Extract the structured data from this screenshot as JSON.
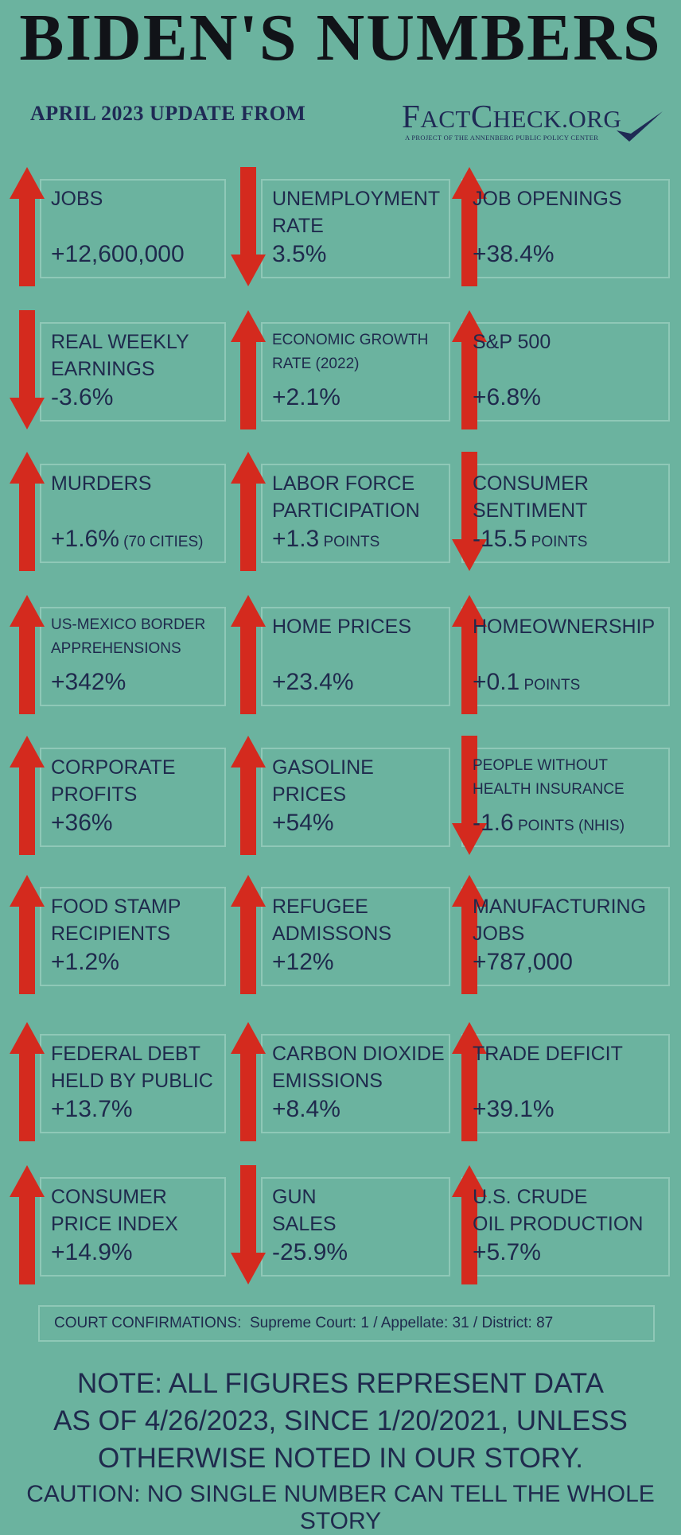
{
  "header": {
    "title": "BIDEN'S NUMBERS",
    "subtitle": "APRIL 2023 UPDATE  FROM",
    "logo_text_a": "F",
    "logo_text_b": "ACT",
    "logo_text_c": "C",
    "logo_text_d": "HECK",
    "logo_text_e": ".ORG",
    "logo_tagline": "A Project of the Annenberg Public Policy Center"
  },
  "colors": {
    "background": "#6bb39f",
    "arrow": "#d42a1e",
    "text": "#1f2a4d",
    "border": "#8fc8b7"
  },
  "stats": [
    {
      "label": [
        "JOBS"
      ],
      "value": "+12,600,000",
      "unit": "",
      "direction": "up"
    },
    {
      "label": [
        "UNEMPLOYMENT",
        "RATE"
      ],
      "value": "3.5%",
      "unit": "",
      "direction": "down"
    },
    {
      "label": [
        "JOB OPENINGS"
      ],
      "value": "+38.4%",
      "unit": "",
      "direction": "up"
    },
    {
      "label": [
        "REAL WEEKLY",
        "EARNINGS"
      ],
      "value": "-3.6%",
      "unit": "",
      "direction": "down"
    },
    {
      "label": [
        "ECONOMIC GROWTH",
        "RATE (2022)"
      ],
      "value": "+2.1%",
      "unit": "",
      "direction": "up"
    },
    {
      "label": [
        "S&P 500"
      ],
      "value": "+6.8%",
      "unit": "",
      "direction": "up"
    },
    {
      "label": [
        "MURDERS"
      ],
      "value": "+1.6%",
      "unit": "(70 CITIES)",
      "direction": "up"
    },
    {
      "label": [
        "LABOR FORCE",
        "PARTICIPATION"
      ],
      "value": "+1.3",
      "unit": "POINTS",
      "direction": "up"
    },
    {
      "label": [
        "CONSUMER",
        "SENTIMENT"
      ],
      "value": "-15.5",
      "unit": "POINTS",
      "direction": "down"
    },
    {
      "label": [
        "US-MEXICO BORDER",
        "APPREHENSIONS"
      ],
      "value": "+342%",
      "unit": "",
      "direction": "up"
    },
    {
      "label": [
        "HOME PRICES"
      ],
      "value": "+23.4%",
      "unit": "",
      "direction": "up"
    },
    {
      "label": [
        "HOMEOWNERSHIP"
      ],
      "value": "+0.1",
      "unit": "POINTS",
      "direction": "up"
    },
    {
      "label": [
        "CORPORATE",
        "PROFITS"
      ],
      "value": "+36%",
      "unit": "",
      "direction": "up"
    },
    {
      "label": [
        "GASOLINE",
        "PRICES"
      ],
      "value": "+54%",
      "unit": "",
      "direction": "up"
    },
    {
      "label": [
        "PEOPLE WITHOUT",
        "HEALTH INSURANCE"
      ],
      "value": "-1.6",
      "unit": "POINTS (NHIS)",
      "direction": "down"
    },
    {
      "label": [
        "FOOD STAMP",
        "RECIPIENTS"
      ],
      "value": "+1.2%",
      "unit": "",
      "direction": "up"
    },
    {
      "label": [
        "REFUGEE",
        "ADMISSONS"
      ],
      "value": "+12%",
      "unit": "",
      "direction": "up"
    },
    {
      "label": [
        "MANUFACTURING",
        "JOBS"
      ],
      "value": "+787,000",
      "unit": "",
      "direction": "up"
    },
    {
      "label": [
        "FEDERAL DEBT",
        "HELD BY PUBLIC"
      ],
      "value": "+13.7%",
      "unit": "",
      "direction": "up"
    },
    {
      "label": [
        "CARBON DIOXIDE",
        "EMISSIONS"
      ],
      "value": "+8.4%",
      "unit": "",
      "direction": "up"
    },
    {
      "label": [
        "TRADE DEFICIT"
      ],
      "value": "+39.1%",
      "unit": "",
      "direction": "up"
    },
    {
      "label": [
        "CONSUMER",
        "PRICE INDEX"
      ],
      "value": "+14.9%",
      "unit": "",
      "direction": "up"
    },
    {
      "label": [
        "GUN",
        "SALES"
      ],
      "value": "-25.9%",
      "unit": "",
      "direction": "down"
    },
    {
      "label": [
        "U.S. CRUDE",
        "OIL PRODUCTION"
      ],
      "value": "+5.7%",
      "unit": "",
      "direction": "up"
    }
  ],
  "court": {
    "label": "COURT CONFIRMATIONS:",
    "detail": "Supreme Court: 1 / Appellate: 31 / District: 87"
  },
  "note": {
    "line1": "NOTE:  ALL FIGURES REPRESENT DATA",
    "line2": "AS OF 4/26/2023, SINCE 1/20/2021, UNLESS",
    "line3": "OTHERWISE NOTED IN OUR STORY."
  },
  "caution": "CAUTION: NO SINGLE NUMBER CAN TELL THE WHOLE STORY"
}
